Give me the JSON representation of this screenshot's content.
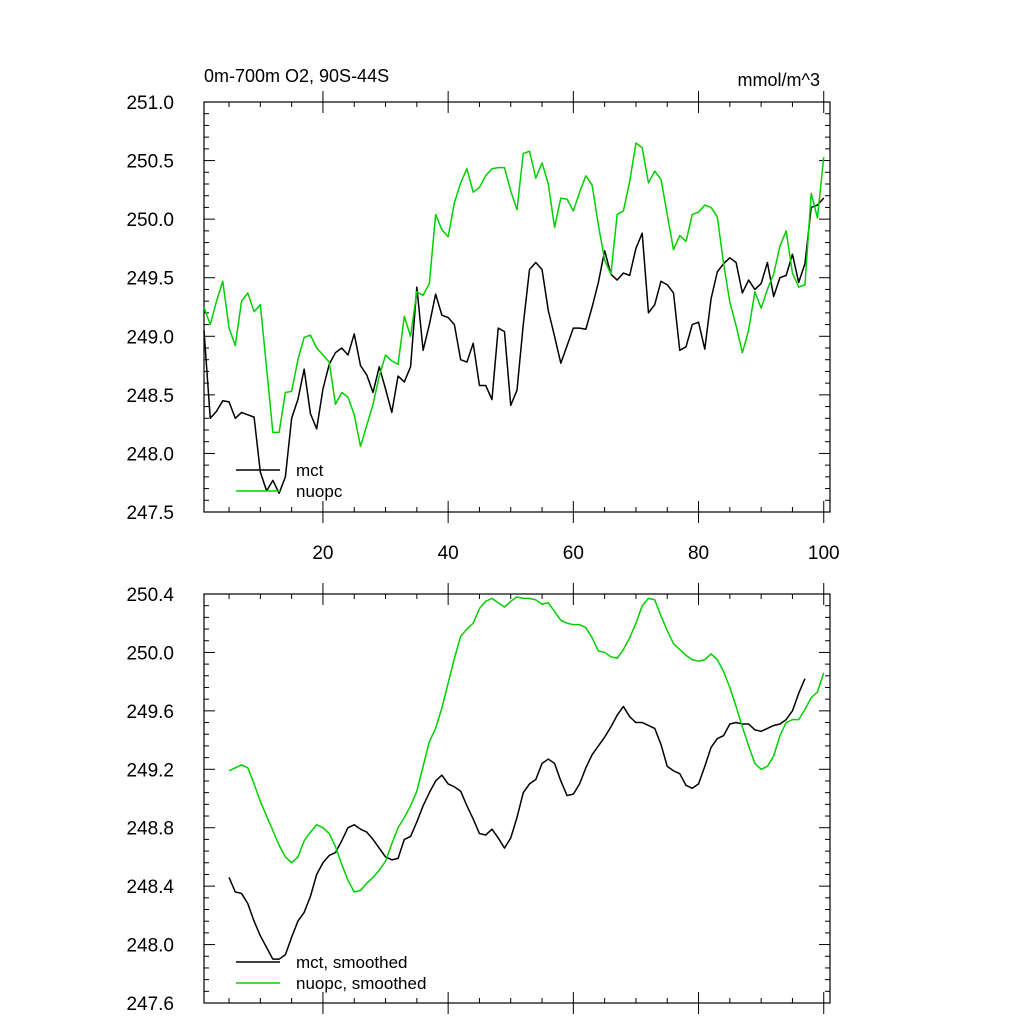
{
  "figure": {
    "header_left": "0m-700m O2, 90S-44S",
    "header_right": "mmol/m^3"
  },
  "chart_data": [
    {
      "type": "line",
      "title": "0m-700m O2, 90S-44S",
      "units": "mmol/m^3",
      "xlim": [
        1,
        101
      ],
      "ylim": [
        247.5,
        251.0
      ],
      "xticks": [
        20,
        40,
        60,
        80,
        100
      ],
      "yticks": [
        247.5,
        248.0,
        248.5,
        249.0,
        249.5,
        250.0,
        250.5,
        251.0
      ],
      "ytick_labels": [
        "247.5",
        "248.0",
        "248.5",
        "249.0",
        "249.5",
        "250.0",
        "250.5",
        "251.0"
      ],
      "legend_position": "bottom-left",
      "grid": false,
      "x_start": 1,
      "series": [
        {
          "name": "mct",
          "color": "#000000",
          "values": [
            249.05,
            248.3,
            248.36,
            248.45,
            248.44,
            248.3,
            248.35,
            248.33,
            248.31,
            247.84,
            247.68,
            247.77,
            247.66,
            247.8,
            248.3,
            248.46,
            248.72,
            248.34,
            248.21,
            248.55,
            248.76,
            248.86,
            248.9,
            248.84,
            249.02,
            248.75,
            248.67,
            248.52,
            248.74,
            248.55,
            248.35,
            248.66,
            248.61,
            248.74,
            249.42,
            248.88,
            249.1,
            249.36,
            249.18,
            249.16,
            249.1,
            248.8,
            248.78,
            248.94,
            248.58,
            248.58,
            248.46,
            249.07,
            249.04,
            248.41,
            248.54,
            249.1,
            249.57,
            249.63,
            249.57,
            249.22,
            249.0,
            248.77,
            248.92,
            249.07,
            249.07,
            249.06,
            249.25,
            249.46,
            249.73,
            249.53,
            249.48,
            249.54,
            249.52,
            249.75,
            249.88,
            249.2,
            249.27,
            249.47,
            249.44,
            249.37,
            248.88,
            248.91,
            249.1,
            249.12,
            248.89,
            249.32,
            249.55,
            249.62,
            249.67,
            249.63,
            249.37,
            249.48,
            249.4,
            249.45,
            249.63,
            249.34,
            249.5,
            249.52,
            249.7,
            249.46,
            249.62,
            250.1,
            250.12,
            250.18
          ]
        },
        {
          "name": "nuopc",
          "color": "#00d000",
          "values": [
            249.25,
            249.1,
            249.3,
            249.47,
            249.07,
            248.92,
            249.3,
            249.37,
            249.21,
            249.27,
            248.73,
            248.18,
            248.18,
            248.52,
            248.53,
            248.8,
            248.99,
            249.01,
            248.9,
            248.84,
            248.78,
            248.42,
            248.52,
            248.48,
            248.33,
            248.06,
            248.24,
            248.42,
            248.66,
            248.84,
            248.79,
            248.76,
            249.17,
            249.0,
            249.38,
            249.35,
            249.45,
            250.04,
            249.91,
            249.85,
            250.14,
            250.31,
            250.43,
            250.23,
            250.27,
            250.37,
            250.43,
            250.44,
            250.44,
            250.24,
            250.08,
            250.56,
            250.58,
            250.35,
            250.48,
            250.3,
            249.93,
            250.18,
            250.17,
            250.07,
            250.23,
            250.37,
            250.29,
            249.95,
            249.65,
            249.53,
            250.04,
            250.07,
            250.32,
            250.65,
            250.61,
            250.31,
            250.41,
            250.34,
            250.04,
            249.74,
            249.86,
            249.81,
            250.04,
            250.06,
            250.12,
            250.1,
            250.02,
            249.62,
            249.29,
            249.09,
            248.86,
            249.05,
            249.38,
            249.24,
            249.4,
            249.53,
            249.77,
            249.9,
            249.54,
            249.42,
            249.44,
            250.22,
            250.01,
            250.53
          ]
        }
      ]
    },
    {
      "type": "line",
      "xlim": [
        1,
        101
      ],
      "ylim": [
        247.6,
        250.4
      ],
      "xticks": [
        20,
        40,
        60,
        80,
        100
      ],
      "yticks": [
        247.6,
        248.0,
        248.4,
        248.8,
        249.2,
        249.6,
        250.0,
        250.4
      ],
      "ytick_labels": [
        "247.6",
        "248.0",
        "248.4",
        "248.8",
        "249.2",
        "249.6",
        "250.0",
        "250.4"
      ],
      "legend_position": "bottom-left",
      "grid": false,
      "x_start": 5,
      "series": [
        {
          "name": "mct, smoothed",
          "color": "#000000",
          "values": [
            248.46,
            248.36,
            248.35,
            248.28,
            248.16,
            248.06,
            247.98,
            247.9,
            247.9,
            247.93,
            248.05,
            248.16,
            248.22,
            248.33,
            248.48,
            248.56,
            248.61,
            248.63,
            248.71,
            248.8,
            248.82,
            248.79,
            248.77,
            248.72,
            248.66,
            248.6,
            248.58,
            248.59,
            248.72,
            248.74,
            248.84,
            248.95,
            249.04,
            249.12,
            249.16,
            249.1,
            249.08,
            249.05,
            248.95,
            248.86,
            248.76,
            248.75,
            248.79,
            248.73,
            248.66,
            248.73,
            248.87,
            249.04,
            249.1,
            249.13,
            249.24,
            249.27,
            249.24,
            249.12,
            249.02,
            249.03,
            249.1,
            249.21,
            249.3,
            249.36,
            249.42,
            249.49,
            249.57,
            249.63,
            249.56,
            249.52,
            249.52,
            249.5,
            249.48,
            249.37,
            249.22,
            249.19,
            249.17,
            249.09,
            249.07,
            249.1,
            249.22,
            249.35,
            249.41,
            249.43,
            249.51,
            249.52,
            249.51,
            249.51,
            249.47,
            249.46,
            249.48,
            249.5,
            249.51,
            249.54,
            249.6,
            249.72,
            249.82
          ]
        },
        {
          "name": "nuopc, smoothed",
          "color": "#00d000",
          "values": [
            249.19,
            249.21,
            249.23,
            249.21,
            249.1,
            248.98,
            248.88,
            248.78,
            248.68,
            248.6,
            248.56,
            248.6,
            248.71,
            248.77,
            248.82,
            248.8,
            248.76,
            248.67,
            248.55,
            248.44,
            248.36,
            248.37,
            248.42,
            248.46,
            248.51,
            248.57,
            248.69,
            248.8,
            248.87,
            248.95,
            249.05,
            249.22,
            249.39,
            249.48,
            249.62,
            249.79,
            249.96,
            250.11,
            250.16,
            250.2,
            250.3,
            250.35,
            250.37,
            250.34,
            250.31,
            250.35,
            250.38,
            250.37,
            250.37,
            250.36,
            250.33,
            250.34,
            250.28,
            250.22,
            250.2,
            250.19,
            250.19,
            250.17,
            250.1,
            250.01,
            250.0,
            249.97,
            249.96,
            250.02,
            250.1,
            250.2,
            250.32,
            250.37,
            250.36,
            250.25,
            250.15,
            250.06,
            250.02,
            249.98,
            249.95,
            249.94,
            249.95,
            249.99,
            249.95,
            249.87,
            249.76,
            249.63,
            249.49,
            249.36,
            249.24,
            249.2,
            249.22,
            249.29,
            249.43,
            249.52,
            249.54,
            249.54,
            249.61,
            249.69,
            249.73,
            249.86
          ]
        }
      ]
    }
  ]
}
